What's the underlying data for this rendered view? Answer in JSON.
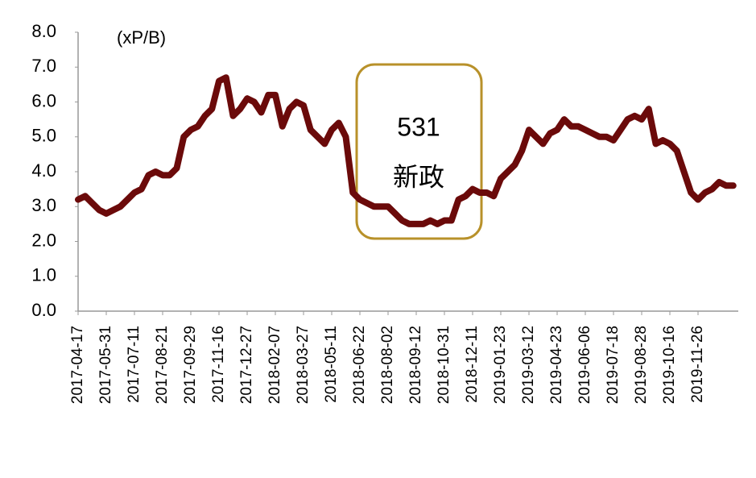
{
  "chart_data": {
    "type": "line",
    "unit_label": "(xP/B)",
    "annotation": {
      "lines": [
        "531",
        "新政"
      ],
      "color": "#b8912a"
    },
    "categories": [
      "2017-04-17",
      null,
      null,
      null,
      "2017-05-31",
      null,
      null,
      null,
      "2017-07-11",
      null,
      null,
      null,
      "2017-08-21",
      null,
      null,
      null,
      "2017-09-29",
      null,
      null,
      null,
      "2017-11-16",
      null,
      null,
      null,
      "2017-12-27",
      null,
      null,
      null,
      "2018-02-07",
      null,
      null,
      null,
      "2018-03-27",
      null,
      null,
      null,
      "2018-05-11",
      null,
      null,
      null,
      "2018-06-22",
      null,
      null,
      null,
      "2018-08-02",
      null,
      null,
      null,
      "2018-09-12",
      null,
      null,
      null,
      "2018-10-31",
      null,
      null,
      null,
      "2018-12-11",
      null,
      null,
      null,
      "2019-01-23",
      null,
      null,
      null,
      "2019-03-12",
      null,
      null,
      null,
      "2019-04-23",
      null,
      null,
      null,
      "2019-06-06",
      null,
      null,
      null,
      "2019-07-18",
      null,
      null,
      null,
      "2019-08-28",
      null,
      null,
      null,
      "2019-10-16",
      null,
      null,
      null,
      "2019-11-26",
      null,
      null,
      null,
      null,
      null
    ],
    "values": [
      3.2,
      3.3,
      3.1,
      2.9,
      2.8,
      2.9,
      3.0,
      3.2,
      3.4,
      3.5,
      3.9,
      4.0,
      3.9,
      3.9,
      4.1,
      5.0,
      5.2,
      5.3,
      5.6,
      5.8,
      6.6,
      6.7,
      5.6,
      5.8,
      6.1,
      6.0,
      5.7,
      6.2,
      6.2,
      5.3,
      5.8,
      6.0,
      5.9,
      5.2,
      5.0,
      4.8,
      5.2,
      5.4,
      5.0,
      3.4,
      3.2,
      3.1,
      3.0,
      3.0,
      3.0,
      2.8,
      2.6,
      2.5,
      2.5,
      2.5,
      2.6,
      2.5,
      2.6,
      2.6,
      3.2,
      3.3,
      3.5,
      3.4,
      3.4,
      3.3,
      3.8,
      4.0,
      4.2,
      4.6,
      5.2,
      5.0,
      4.8,
      5.1,
      5.2,
      5.5,
      5.3,
      5.3,
      5.2,
      5.1,
      5.0,
      5.0,
      4.9,
      5.2,
      5.5,
      5.6,
      5.5,
      5.8,
      4.8,
      4.9,
      4.8,
      4.6,
      4.0,
      3.4,
      3.2,
      3.4,
      3.5,
      3.7,
      3.6,
      3.6
    ],
    "color": "#6b0a0a",
    "ylim": [
      0,
      8
    ],
    "yticks": [
      {
        "value": 0,
        "label": "0.0"
      },
      {
        "value": 1,
        "label": "1.0"
      },
      {
        "value": 2,
        "label": "2.0"
      },
      {
        "value": 3,
        "label": "3.0"
      },
      {
        "value": 4,
        "label": "4.0"
      },
      {
        "value": 5,
        "label": "5.0"
      },
      {
        "value": 6,
        "label": "6.0"
      },
      {
        "value": 7,
        "label": "7.0"
      },
      {
        "value": 8,
        "label": "8.0"
      }
    ],
    "grid": false
  }
}
